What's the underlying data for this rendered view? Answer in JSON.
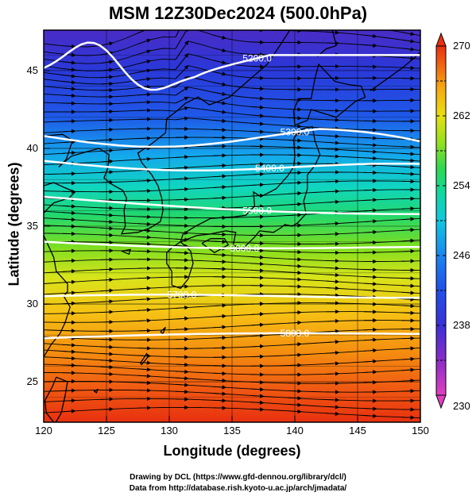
{
  "title": "MSM 12Z30Dec2024 (500.0hPa)",
  "xlabel": "Longitude (degrees)",
  "ylabel": "Latitude  (degrees)",
  "credits": [
    "Drawing by DCL (https://www.gfd-dennou.org/library/dcl/)",
    "Data from http://database.rish.kyoto-u.ac.jp/arch/jmadata/"
  ],
  "map": {
    "lon_range": [
      120,
      150
    ],
    "lat_range": [
      22.4,
      47.6
    ],
    "x_ticks": [
      "120",
      "125",
      "130",
      "135",
      "140",
      "145",
      "150"
    ],
    "y_ticks": [
      "25",
      "30",
      "35",
      "40",
      "45"
    ],
    "field": "temperature",
    "colorbar": {
      "min": 230,
      "max": 270,
      "ticks": [
        "230",
        "238",
        "246",
        "254",
        "262",
        "270"
      ],
      "colors": [
        "#e040c0",
        "#7020c8",
        "#2040e0",
        "#2060f0",
        "#10a0f0",
        "#10d0b0",
        "#20d060",
        "#80e020",
        "#e0e010",
        "#f8b010",
        "#f07010",
        "#e83010"
      ]
    },
    "contour_labels": [
      "5200.0",
      "5300.0",
      "5400.0",
      "5500.0",
      "5600.0",
      "5700.0",
      "5800.0"
    ],
    "wind": "westerly streamlines"
  }
}
